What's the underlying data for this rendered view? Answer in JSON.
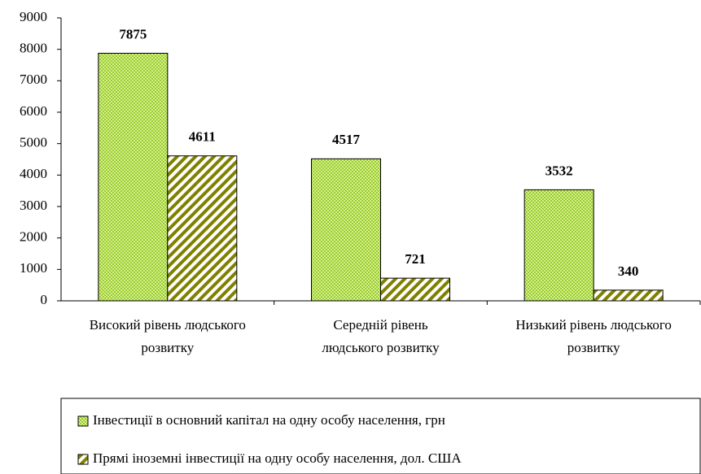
{
  "chart_data": {
    "type": "bar",
    "categories": [
      "Високий рівень людського розвитку",
      "Середній рівень людського розвитку",
      "Низький рівень людського розвитку"
    ],
    "series": [
      {
        "name": "Інвестиції в основний капітал на одну особу населення, грн",
        "color": "#99cc33",
        "values": [
          7875,
          4517,
          3532
        ]
      },
      {
        "name": "Прямі іноземні інвестиції на одну особу населення, дол. США",
        "color": "#808000",
        "values": [
          4611,
          721,
          340
        ]
      }
    ],
    "ylim": [
      0,
      9000
    ],
    "yticks": [
      0,
      1000,
      2000,
      3000,
      4000,
      5000,
      6000,
      7000,
      8000,
      9000
    ]
  }
}
